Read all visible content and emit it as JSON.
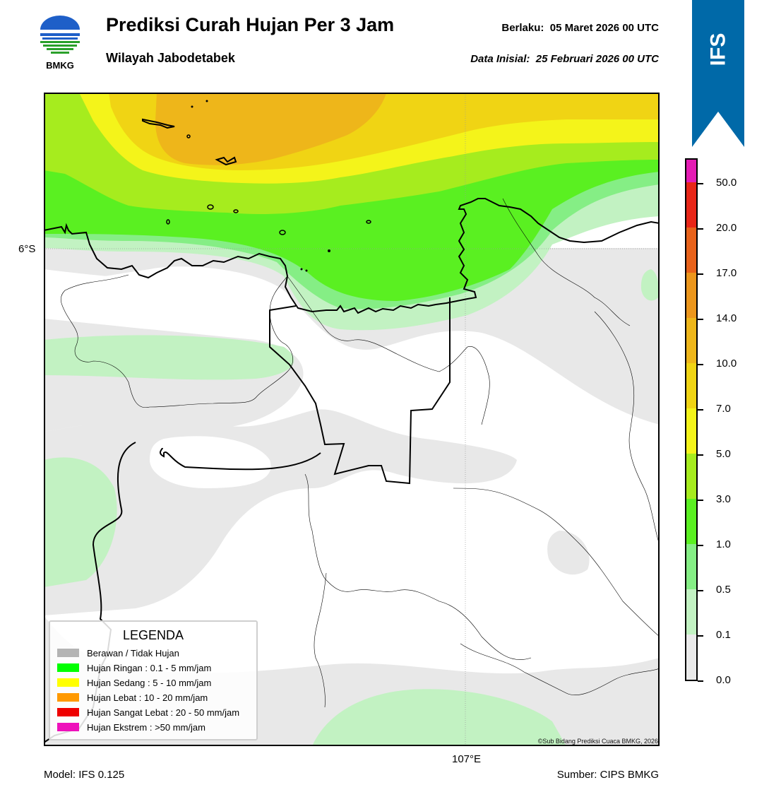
{
  "header": {
    "title": "Prediksi Curah Hujan Per 3 Jam",
    "subtitle": "Wilayah Jabodetabek",
    "valid_label": "Berlaku:",
    "valid_time": "05 Maret 2026 00 UTC",
    "init_label": "Data Inisial:",
    "init_time": "25 Februari 2026 00 UTC"
  },
  "logo": {
    "text": "BMKG",
    "icon": "bmkg-logo"
  },
  "ribbon": {
    "text": "IFS",
    "color": "#0069a8"
  },
  "map": {
    "lat_label": "6°S",
    "lon_label": "107°E",
    "copyright": "©Sub Bidang Prediksi Cuaca BMKG, 2026"
  },
  "legend": {
    "title": "LEGENDA",
    "items": [
      {
        "label": "Berawan / Tidak Hujan",
        "color": "#b4b4b4"
      },
      {
        "label": "Hujan Ringan : 0.1 - 5 mm/jam",
        "color": "#00ff00"
      },
      {
        "label": "Hujan Sedang : 5 - 10 mm/jam",
        "color": "#ffff00"
      },
      {
        "label": "Hujan Lebat : 10 - 20 mm/jam",
        "color": "#ff9900"
      },
      {
        "label": "Hujan Sangat Lebat : 20 - 50 mm/jam",
        "color": "#ee0000"
      },
      {
        "label": "Hujan Ekstrem : >50 mm/jam",
        "color": "#ee11bb"
      }
    ]
  },
  "colorbar": {
    "ticks": [
      "0.0",
      "0.1",
      "0.5",
      "1.0",
      "3.0",
      "5.0",
      "7.0",
      "10.0",
      "14.0",
      "17.0",
      "20.0",
      "50.0"
    ],
    "colors": [
      "#eaeaea",
      "#c2f2c2",
      "#85ee85",
      "#5af021",
      "#a6ec1e",
      "#f4f41a",
      "#f0d414",
      "#eeb61a",
      "#ec961c",
      "#e8621a",
      "#e82618",
      "#e41cb4"
    ]
  },
  "footer": {
    "model": "Model: IFS 0.125",
    "source": "Sumber: CIPS BMKG"
  }
}
